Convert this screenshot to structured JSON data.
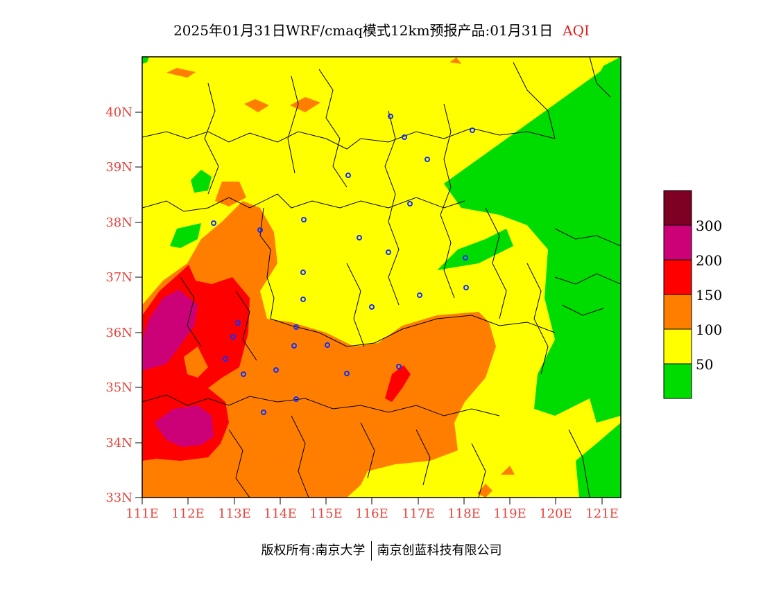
{
  "title": "2025年01月31日WRF/cmaq模式12km预报产品:01月31日",
  "product": "AQI",
  "credit": {
    "left": "版权所有:南京大学",
    "right": "南京创蓝科技有限公司"
  },
  "axes": {
    "lat_labels": [
      "40N",
      "39N",
      "38N",
      "37N",
      "36N",
      "35N",
      "34N",
      "33N"
    ],
    "lon_labels": [
      "111E",
      "112E",
      "113E",
      "114E",
      "115E",
      "116E",
      "117E",
      "118E",
      "119E",
      "120E",
      "121E"
    ],
    "label_color": "#e8413a"
  },
  "legend": {
    "colors": [
      "#00dc00",
      "#ffff00",
      "#ff7e00",
      "#ff0000",
      "#cc0077",
      "#7e0023"
    ],
    "labels": [
      "50",
      "100",
      "150",
      "200",
      "300"
    ]
  },
  "extent": {
    "lon": [
      111,
      121.4
    ],
    "lat": [
      33,
      41
    ]
  }
}
